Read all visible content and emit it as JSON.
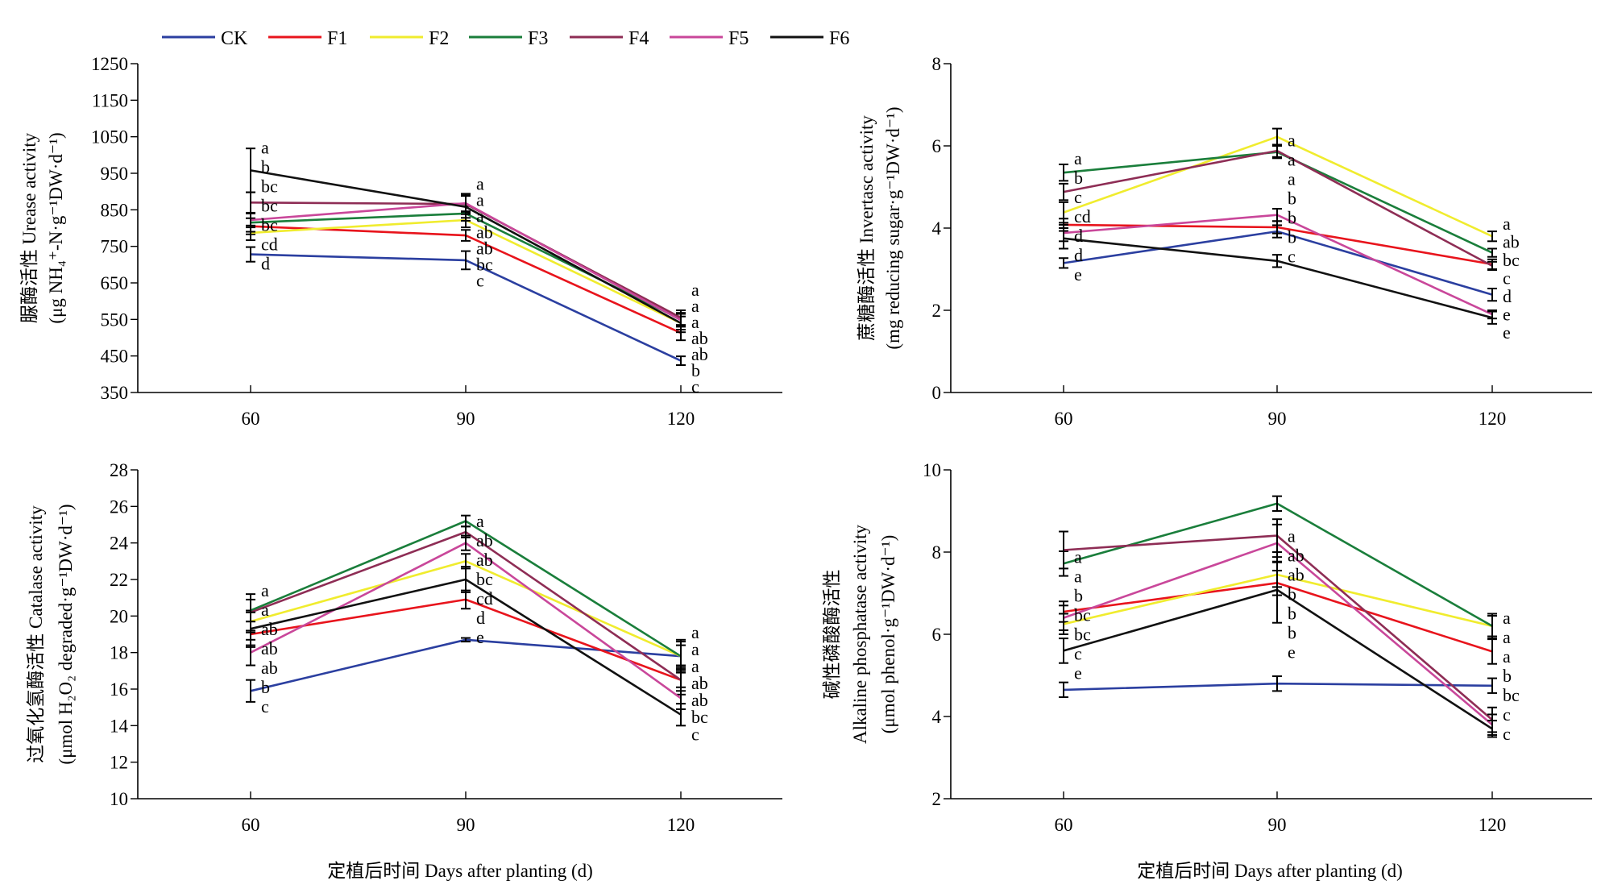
{
  "legend": [
    {
      "name": "CK",
      "color": "#2b3fa0"
    },
    {
      "name": "F1",
      "color": "#e8141c"
    },
    {
      "name": "F2",
      "color": "#f0ec2e"
    },
    {
      "name": "F3",
      "color": "#1a7e3b"
    },
    {
      "name": "F4",
      "color": "#8e2d55"
    },
    {
      "name": "F5",
      "color": "#c9479a"
    },
    {
      "name": "F6",
      "color": "#111111"
    }
  ],
  "x_axis_label": "定植后时间 Days after planting (d)",
  "chart_data": [
    {
      "type": "line",
      "id": "urease",
      "ylabel_lines": [
        "脲酶活性 Urease activity",
        "(μg NH₄⁺-N·g⁻¹DW·d⁻¹)"
      ],
      "x": [
        60,
        90,
        120
      ],
      "ylim": [
        350,
        1250
      ],
      "yticks": [
        350,
        450,
        550,
        650,
        750,
        850,
        950,
        1050,
        1150,
        1250
      ],
      "series": [
        {
          "name": "CK",
          "values": [
            728,
            712,
            437
          ],
          "err": [
            20,
            25,
            12
          ]
        },
        {
          "name": "F1",
          "values": [
            805,
            780,
            513
          ],
          "err": [
            22,
            15,
            20
          ]
        },
        {
          "name": "F2",
          "values": [
            787,
            822,
            540
          ],
          "err": [
            20,
            20,
            18
          ]
        },
        {
          "name": "F3",
          "values": [
            815,
            840,
            550
          ],
          "err": [
            25,
            20,
            18
          ]
        },
        {
          "name": "F4",
          "values": [
            870,
            866,
            555
          ],
          "err": [
            28,
            28,
            20
          ]
        },
        {
          "name": "F5",
          "values": [
            822,
            868,
            548
          ],
          "err": [
            20,
            22,
            18
          ]
        },
        {
          "name": "F6",
          "values": [
            958,
            858,
            540
          ],
          "err": [
            60,
            30,
            25
          ]
        }
      ],
      "sig_letters": [
        [
          "a",
          "b",
          "bc",
          "bc",
          "bc",
          "cd",
          "d"
        ],
        [
          "a",
          "a",
          "a",
          "ab",
          "ab",
          "bc",
          "c"
        ],
        [
          "a",
          "a",
          "a",
          "ab",
          "ab",
          "b",
          "c"
        ]
      ]
    },
    {
      "type": "line",
      "id": "invertase",
      "ylabel_lines": [
        "蔗糖酶活性 Invertasc activity",
        "(mg reducing sugar·g⁻¹DW·d⁻¹)"
      ],
      "x": [
        60,
        90,
        120
      ],
      "ylim": [
        0,
        8
      ],
      "yticks": [
        0,
        2,
        4,
        6,
        8
      ],
      "series": [
        {
          "name": "CK",
          "values": [
            3.15,
            3.92,
            2.38
          ],
          "err": [
            0.12,
            0.15,
            0.15
          ]
        },
        {
          "name": "F1",
          "values": [
            4.08,
            4.02,
            3.12
          ],
          "err": [
            0.15,
            0.15,
            0.12
          ]
        },
        {
          "name": "F2",
          "values": [
            4.38,
            6.22,
            3.8
          ],
          "err": [
            0.25,
            0.2,
            0.12
          ]
        },
        {
          "name": "F3",
          "values": [
            5.35,
            5.85,
            3.4
          ],
          "err": [
            0.2,
            0.15,
            0.1
          ]
        },
        {
          "name": "F4",
          "values": [
            4.88,
            5.88,
            3.08
          ],
          "err": [
            0.2,
            0.15,
            0.1
          ]
        },
        {
          "name": "F5",
          "values": [
            3.88,
            4.32,
            1.9
          ],
          "err": [
            0.2,
            0.15,
            0.1
          ]
        },
        {
          "name": "F6",
          "values": [
            3.75,
            3.2,
            1.82
          ],
          "err": [
            0.25,
            0.15,
            0.15
          ]
        }
      ],
      "sig_letters": [
        [
          "a",
          "b",
          "c",
          "cd",
          "d",
          "d",
          "e"
        ],
        [
          "a",
          "a",
          "a",
          "b",
          "b",
          "b",
          "c"
        ],
        [
          "a",
          "ab",
          "bc",
          "c",
          "d",
          "e",
          "e"
        ]
      ]
    },
    {
      "type": "line",
      "id": "catalase",
      "ylabel_lines": [
        "过氧化氢酶活性 Catalase activity",
        "(μmol H₂O₂ degraded·g⁻¹DW·d⁻¹)"
      ],
      "x": [
        60,
        90,
        120
      ],
      "ylim": [
        10,
        28
      ],
      "yticks": [
        10,
        12,
        14,
        16,
        18,
        20,
        22,
        24,
        26,
        28
      ],
      "series": [
        {
          "name": "CK",
          "values": [
            15.9,
            18.7,
            17.8
          ],
          "err": [
            0.6,
            0.1,
            0.9
          ]
        },
        {
          "name": "F1",
          "values": [
            19.0,
            20.9,
            16.5
          ],
          "err": [
            0.7,
            0.5,
            0.8
          ]
        },
        {
          "name": "F2",
          "values": [
            19.7,
            23.0,
            17.8
          ],
          "err": [
            0.6,
            0.4,
            0.8
          ]
        },
        {
          "name": "F3",
          "values": [
            20.3,
            25.2,
            17.8
          ],
          "err": [
            0.6,
            0.3,
            0.6
          ]
        },
        {
          "name": "F4",
          "values": [
            20.2,
            24.6,
            16.5
          ],
          "err": [
            1.0,
            0.3,
            0.6
          ]
        },
        {
          "name": "F5",
          "values": [
            18.0,
            24.0,
            15.5
          ],
          "err": [
            0.7,
            0.4,
            0.6
          ]
        },
        {
          "name": "F6",
          "values": [
            19.3,
            22.0,
            14.6
          ],
          "err": [
            0.9,
            0.7,
            0.6
          ]
        }
      ],
      "sig_letters": [
        [
          "a",
          "a",
          "ab",
          "ab",
          "ab",
          "b",
          "c"
        ],
        [
          "a",
          "ab",
          "ab",
          "bc",
          "cd",
          "d",
          "e"
        ],
        [
          "a",
          "a",
          "a",
          "ab",
          "ab",
          "bc",
          "c"
        ]
      ]
    },
    {
      "type": "line",
      "id": "alkaline-phosphatase",
      "ylabel_lines": [
        "碱性磷酸酶活性",
        "Alkaline phosphatase activity",
        "(μmol phenol·g⁻¹DW·d⁻¹)"
      ],
      "x": [
        60,
        90,
        120
      ],
      "ylim": [
        2,
        10
      ],
      "yticks": [
        2,
        4,
        6,
        8,
        10
      ],
      "series": [
        {
          "name": "CK",
          "values": [
            4.65,
            4.8,
            4.75
          ],
          "err": [
            0.18,
            0.18,
            0.18
          ]
        },
        {
          "name": "F1",
          "values": [
            6.55,
            7.25,
            5.58
          ],
          "err": [
            0.25,
            0.3,
            0.3
          ]
        },
        {
          "name": "F2",
          "values": [
            6.25,
            7.45,
            6.2
          ],
          "err": [
            0.25,
            0.3,
            0.3
          ]
        },
        {
          "name": "F3",
          "values": [
            7.72,
            9.18,
            6.2
          ],
          "err": [
            0.3,
            0.18,
            0.25
          ]
        },
        {
          "name": "F4",
          "values": [
            8.05,
            8.4,
            3.92
          ],
          "err": [
            0.45,
            0.4,
            0.3
          ]
        },
        {
          "name": "F5",
          "values": [
            6.4,
            8.22,
            3.8
          ],
          "err": [
            0.3,
            0.45,
            0.25
          ]
        },
        {
          "name": "F6",
          "values": [
            5.6,
            7.08,
            3.7
          ],
          "err": [
            0.3,
            0.8,
            0.2
          ]
        }
      ],
      "sig_letters": [
        [
          "a",
          "a",
          "b",
          "bc",
          "bc",
          "c",
          "e"
        ],
        [
          "a",
          "ab",
          "ab",
          "b",
          "b",
          "b",
          "e"
        ],
        [
          "a",
          "a",
          "a",
          "b",
          "bc",
          "c",
          "c"
        ]
      ]
    }
  ]
}
